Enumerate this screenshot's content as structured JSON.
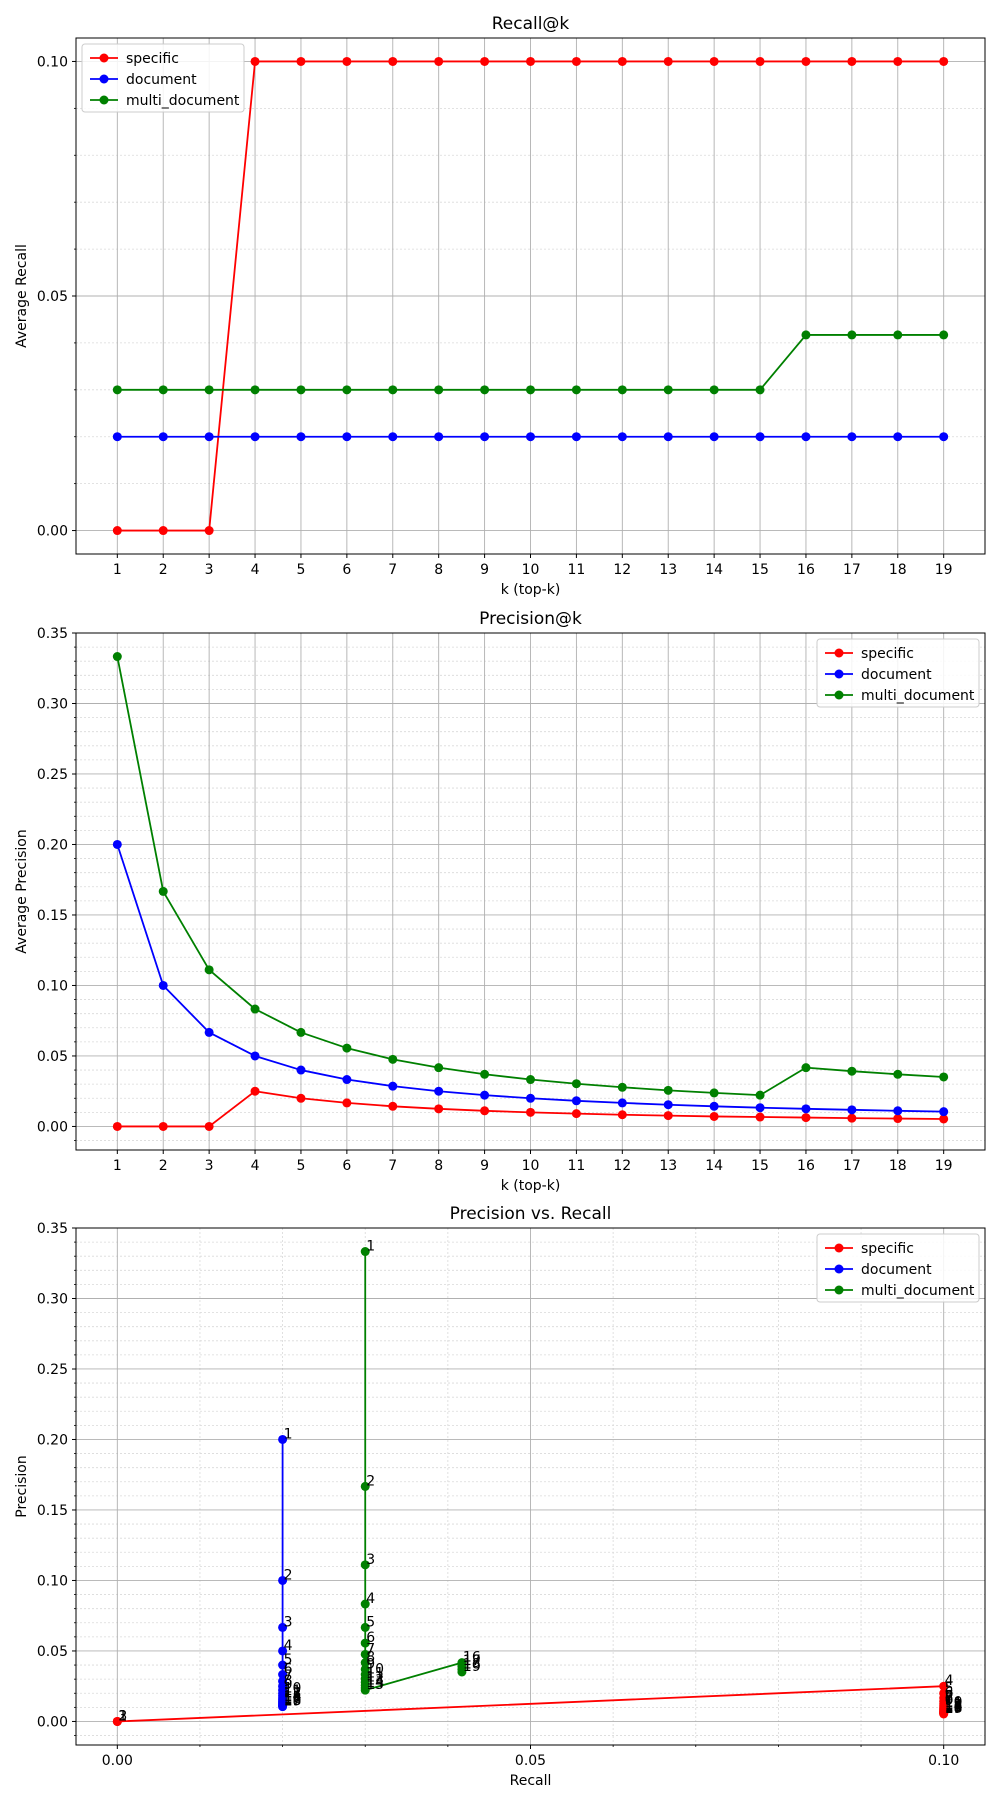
{
  "chart_data": [
    {
      "type": "line",
      "title": "Recall@k",
      "xlabel": "k (top-k)",
      "ylabel": "Average Recall",
      "x": [
        1,
        2,
        3,
        4,
        5,
        6,
        7,
        8,
        9,
        10,
        11,
        12,
        13,
        14,
        15,
        16,
        17,
        18,
        19
      ],
      "x_tick_labels": [
        "1",
        "2",
        "3",
        "4",
        "5",
        "6",
        "7",
        "8",
        "9",
        "10",
        "11",
        "12",
        "13",
        "14",
        "15",
        "16",
        "17",
        "18",
        "19"
      ],
      "xlim": [
        0.1,
        19.9
      ],
      "ylim": [
        -0.005,
        0.105
      ],
      "y_ticks": [
        0.0,
        0.05,
        0.1
      ],
      "y_tick_labels": [
        "0.00",
        "0.05",
        "0.10"
      ],
      "y_minor_step": 0.01,
      "grid": true,
      "legend_position": "upper-left",
      "series": [
        {
          "name": "specific",
          "color": "#ff0000",
          "values": [
            0,
            0,
            0,
            0.1,
            0.1,
            0.1,
            0.1,
            0.1,
            0.1,
            0.1,
            0.1,
            0.1,
            0.1,
            0.1,
            0.1,
            0.1,
            0.1,
            0.1,
            0.1
          ]
        },
        {
          "name": "document",
          "color": "#0000ff",
          "values": [
            0.02,
            0.02,
            0.02,
            0.02,
            0.02,
            0.02,
            0.02,
            0.02,
            0.02,
            0.02,
            0.02,
            0.02,
            0.02,
            0.02,
            0.02,
            0.02,
            0.02,
            0.02,
            0.02
          ]
        },
        {
          "name": "multi_document",
          "color": "#008000",
          "values": [
            0.03,
            0.03,
            0.03,
            0.03,
            0.03,
            0.03,
            0.03,
            0.03,
            0.03,
            0.03,
            0.03,
            0.03,
            0.03,
            0.03,
            0.03,
            0.0417,
            0.0417,
            0.0417,
            0.0417
          ]
        }
      ]
    },
    {
      "type": "line",
      "title": "Precision@k",
      "xlabel": "k (top-k)",
      "ylabel": "Average Precision",
      "x": [
        1,
        2,
        3,
        4,
        5,
        6,
        7,
        8,
        9,
        10,
        11,
        12,
        13,
        14,
        15,
        16,
        17,
        18,
        19
      ],
      "x_tick_labels": [
        "1",
        "2",
        "3",
        "4",
        "5",
        "6",
        "7",
        "8",
        "9",
        "10",
        "11",
        "12",
        "13",
        "14",
        "15",
        "16",
        "17",
        "18",
        "19"
      ],
      "xlim": [
        0.1,
        19.9
      ],
      "ylim": [
        -0.0167,
        0.35
      ],
      "y_ticks": [
        0.0,
        0.05,
        0.1,
        0.15,
        0.2,
        0.25,
        0.3,
        0.35
      ],
      "y_tick_labels": [
        "0.00",
        "0.05",
        "0.10",
        "0.15",
        "0.20",
        "0.25",
        "0.30",
        "0.35"
      ],
      "y_minor_step": 0.01,
      "grid": true,
      "legend_position": "upper-right",
      "series": [
        {
          "name": "specific",
          "color": "#ff0000",
          "values": [
            0,
            0,
            0,
            0.025,
            0.02,
            0.0167,
            0.0143,
            0.0125,
            0.0111,
            0.01,
            0.0091,
            0.0083,
            0.0077,
            0.0071,
            0.0067,
            0.0063,
            0.0059,
            0.0056,
            0.0053
          ]
        },
        {
          "name": "document",
          "color": "#0000ff",
          "values": [
            0.2,
            0.1,
            0.0667,
            0.05,
            0.04,
            0.0333,
            0.0286,
            0.025,
            0.0222,
            0.02,
            0.0182,
            0.0167,
            0.0154,
            0.0143,
            0.0133,
            0.0125,
            0.0118,
            0.0111,
            0.0105
          ]
        },
        {
          "name": "multi_document",
          "color": "#008000",
          "values": [
            0.3333,
            0.1667,
            0.1111,
            0.0833,
            0.0667,
            0.0556,
            0.0476,
            0.0417,
            0.037,
            0.0333,
            0.0303,
            0.0278,
            0.0256,
            0.0238,
            0.0222,
            0.0417,
            0.0392,
            0.037,
            0.0351
          ]
        }
      ]
    },
    {
      "type": "scatter",
      "title": "Precision vs. Recall",
      "xlabel": "Recall",
      "ylabel": "Precision",
      "xlim": [
        -0.005,
        0.105
      ],
      "ylim": [
        -0.0167,
        0.35
      ],
      "x_ticks": [
        0.0,
        0.05,
        0.1
      ],
      "x_tick_labels": [
        "0.00",
        "0.05",
        "0.10"
      ],
      "x_minor_step": 0.01,
      "y_ticks": [
        0.0,
        0.05,
        0.1,
        0.15,
        0.2,
        0.25,
        0.3,
        0.35
      ],
      "y_tick_labels": [
        "0.00",
        "0.05",
        "0.10",
        "0.15",
        "0.20",
        "0.25",
        "0.30",
        "0.35"
      ],
      "y_minor_step": 0.01,
      "grid": true,
      "legend_position": "upper-right",
      "point_labels": [
        "1",
        "2",
        "3",
        "4",
        "5",
        "6",
        "7",
        "8",
        "9",
        "10",
        "11",
        "12",
        "13",
        "14",
        "15",
        "16",
        "17",
        "18",
        "19"
      ],
      "series": [
        {
          "name": "specific",
          "color": "#ff0000",
          "x": [
            0,
            0,
            0,
            0.1,
            0.1,
            0.1,
            0.1,
            0.1,
            0.1,
            0.1,
            0.1,
            0.1,
            0.1,
            0.1,
            0.1,
            0.1,
            0.1,
            0.1,
            0.1
          ],
          "y": [
            0,
            0,
            0,
            0.025,
            0.02,
            0.0167,
            0.0143,
            0.0125,
            0.0111,
            0.01,
            0.0091,
            0.0083,
            0.0077,
            0.0071,
            0.0067,
            0.0063,
            0.0059,
            0.0056,
            0.0053
          ]
        },
        {
          "name": "document",
          "color": "#0000ff",
          "x": [
            0.02,
            0.02,
            0.02,
            0.02,
            0.02,
            0.02,
            0.02,
            0.02,
            0.02,
            0.02,
            0.02,
            0.02,
            0.02,
            0.02,
            0.02,
            0.02,
            0.02,
            0.02,
            0.02
          ],
          "y": [
            0.2,
            0.1,
            0.0667,
            0.05,
            0.04,
            0.0333,
            0.0286,
            0.025,
            0.0222,
            0.02,
            0.0182,
            0.0167,
            0.0154,
            0.0143,
            0.0133,
            0.0125,
            0.0118,
            0.0111,
            0.0105
          ]
        },
        {
          "name": "multi_document",
          "color": "#008000",
          "x": [
            0.03,
            0.03,
            0.03,
            0.03,
            0.03,
            0.03,
            0.03,
            0.03,
            0.03,
            0.03,
            0.03,
            0.03,
            0.03,
            0.03,
            0.03,
            0.0417,
            0.0417,
            0.0417,
            0.0417
          ],
          "y": [
            0.3333,
            0.1667,
            0.1111,
            0.0833,
            0.0667,
            0.0556,
            0.0476,
            0.0417,
            0.037,
            0.0333,
            0.0303,
            0.0278,
            0.0256,
            0.0238,
            0.0222,
            0.0417,
            0.0392,
            0.037,
            0.0351
          ]
        }
      ]
    }
  ]
}
